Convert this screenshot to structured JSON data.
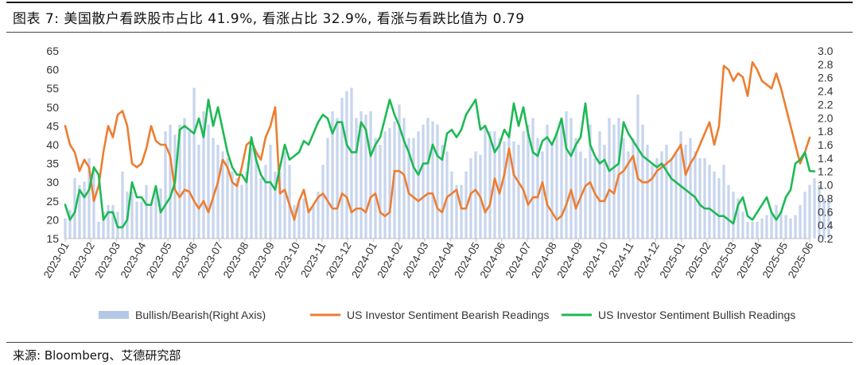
{
  "header": {
    "title": "图表 7: 美国散户看跌股市占比 41.9%, 看涨占比 32.9%, 看涨与看跌比值为 0.79"
  },
  "footer": {
    "source": "来源: Bloomberg、艾德研究部"
  },
  "colors": {
    "bearish": "#ED7D31",
    "bullish": "#1DB954",
    "ratio_bars": "#B4C7E7",
    "axis": "#BFBFBF",
    "tick_text": "#333333"
  },
  "chart_data": {
    "type": "line",
    "left_axis": {
      "range": [
        15,
        65
      ],
      "ticks": [
        15,
        20,
        25,
        30,
        35,
        40,
        45,
        50,
        55,
        60,
        65
      ]
    },
    "right_axis": {
      "range": [
        0.2,
        3.0
      ],
      "ticks": [
        "0.2",
        "0.4",
        "0.6",
        "0.8",
        "1.0",
        "1.2",
        "1.4",
        "1.6",
        "1.8",
        "2.0",
        "2.2",
        "2.4",
        "2.6",
        "2.8",
        "3.0"
      ]
    },
    "x_tick_labels": [
      "2023-01",
      "2023-02",
      "2023-03",
      "2023-04",
      "2023-05",
      "2023-06",
      "2023-07",
      "2023-08",
      "2023-09",
      "2023-10",
      "2023-11",
      "2023-12",
      "2024-01",
      "2024-02",
      "2024-03",
      "2024-04",
      "2024-05",
      "2024-06",
      "2024-07",
      "2024-08",
      "2024-09",
      "2024-10",
      "2024-11",
      "2024-12",
      "2025-01",
      "2025-02",
      "2025-03",
      "2025-04",
      "2025-05",
      "2025-06"
    ],
    "legend_position": "bottom",
    "series": [
      {
        "name": "Bullish/Bearish(Right Axis)",
        "kind": "bar",
        "axis": "right",
        "values": [
          0.5,
          0.63,
          1.1,
          1.0,
          1.05,
          1.4,
          1.25,
          0.45,
          0.6,
          0.7,
          0.7,
          0.6,
          1.2,
          0.9,
          0.9,
          0.75,
          0.75,
          1.0,
          0.7,
          0.9,
          0.95,
          1.8,
          1.9,
          1.75,
          1.9,
          2.0,
          1.8,
          2.45,
          1.6,
          2.1,
          1.9,
          1.7,
          1.6,
          1.5,
          1.4,
          1.2,
          1.1,
          1.0,
          1.2,
          1.55,
          1.5,
          1.1,
          1.3,
          1.6,
          1.2,
          1.2,
          1.5,
          1.3,
          0.7,
          0.75,
          0.8,
          0.65,
          0.7,
          0.9,
          1.3,
          1.7,
          2.1,
          2.0,
          2.3,
          2.4,
          2.45,
          2.0,
          2.1,
          2.05,
          2.1,
          1.7,
          1.6,
          1.8,
          1.85,
          1.95,
          2.2,
          2.0,
          1.7,
          1.7,
          1.8,
          1.9,
          2.0,
          1.95,
          1.9,
          1.6,
          1.5,
          1.2,
          1.0,
          1.0,
          1.2,
          1.4,
          1.5,
          1.45,
          1.9,
          1.8,
          1.8,
          1.7,
          1.65,
          1.8,
          1.65,
          1.6,
          1.8,
          1.9,
          2.0,
          1.7,
          1.5,
          1.9,
          1.6,
          1.8,
          2.0,
          2.1,
          2.0,
          1.7,
          1.5,
          1.4,
          1.9,
          1.4,
          1.8,
          1.6,
          2.0,
          1.9,
          2.0,
          1.7,
          1.5,
          1.7,
          2.35,
          1.9,
          1.6,
          1.3,
          1.4,
          1.5,
          1.6,
          1.4,
          1.5,
          1.8,
          1.6,
          1.7,
          1.5,
          1.4,
          1.4,
          1.3,
          1.2,
          1.1,
          1.3,
          1.0,
          0.9,
          0.8,
          0.6,
          0.45,
          0.45,
          0.45,
          0.5,
          0.55,
          0.6,
          0.7,
          0.6,
          0.55,
          0.5,
          0.55,
          0.7,
          0.9,
          1.0,
          1.1,
          1.0,
          0.8,
          0.79
        ]
      },
      {
        "name": "US Investor Sentiment Bearish Readings",
        "kind": "line",
        "axis": "left",
        "values": [
          45,
          40,
          38,
          33,
          36,
          34,
          25,
          29,
          38,
          45,
          42,
          48,
          49,
          45,
          35,
          34,
          35,
          39,
          45,
          41,
          40,
          40,
          37,
          28,
          26,
          28,
          27.5,
          25,
          23,
          25,
          22,
          26,
          30,
          36,
          34,
          30,
          29,
          34,
          40,
          41,
          38,
          36,
          42,
          45,
          50,
          27,
          28,
          24,
          20,
          25,
          28,
          22,
          24,
          26,
          27,
          25,
          23,
          23,
          27,
          26,
          22,
          23,
          23,
          22,
          26,
          27,
          22,
          21,
          22,
          33,
          33,
          32,
          27,
          26,
          25,
          26,
          27,
          27,
          23,
          22,
          26,
          27,
          28,
          23,
          23,
          27,
          28,
          26,
          22,
          24,
          31,
          27,
          32,
          39,
          32,
          30,
          28,
          24,
          26,
          26,
          30,
          24,
          22,
          20,
          21,
          24,
          28,
          23,
          26,
          29,
          30,
          27,
          25,
          25,
          28,
          27,
          32,
          33,
          35,
          37,
          31,
          30,
          30,
          31,
          33,
          34,
          35,
          36,
          38,
          40,
          32,
          35,
          37,
          40,
          43,
          46,
          40,
          45,
          61,
          60,
          57,
          59,
          58,
          53,
          62,
          60,
          57,
          56,
          55,
          59,
          55,
          50,
          45,
          40,
          35,
          38,
          41.9
        ]
      },
      {
        "name": "US Investor Sentiment Bullish Readings",
        "kind": "line",
        "axis": "left",
        "values": [
          24,
          20,
          22,
          28,
          26,
          28,
          34,
          32,
          20,
          22,
          22,
          18,
          18,
          20,
          30,
          26,
          26,
          24,
          24,
          29,
          22,
          24,
          26,
          30,
          44,
          45,
          44,
          43,
          47,
          42,
          52,
          45,
          50,
          44,
          38,
          34,
          32,
          32,
          30,
          42,
          36,
          32,
          30,
          30,
          28,
          34,
          40,
          36,
          37,
          38,
          41,
          40,
          43,
          46,
          48,
          47,
          43,
          46,
          46,
          40,
          38,
          38,
          46,
          44,
          37,
          40,
          42,
          47,
          52,
          48,
          45,
          41,
          38,
          34,
          32,
          35,
          35,
          40,
          37,
          36,
          43,
          44,
          42,
          44,
          48,
          50,
          52,
          44,
          45,
          42,
          38,
          40,
          44,
          42,
          51,
          45,
          50,
          43,
          38,
          37,
          41,
          42,
          40,
          43,
          47,
          39,
          37,
          40,
          42,
          51,
          40,
          37,
          35,
          36,
          33,
          34,
          35,
          46,
          43,
          41,
          39,
          37,
          36,
          35,
          34,
          35,
          33,
          31,
          30,
          29,
          28,
          27,
          26,
          24,
          23,
          23,
          22,
          21,
          21,
          20,
          19,
          24,
          26,
          21,
          20,
          22,
          24,
          26,
          22,
          20,
          22,
          26,
          28,
          35,
          36,
          38,
          33,
          32.9
        ]
      }
    ]
  }
}
